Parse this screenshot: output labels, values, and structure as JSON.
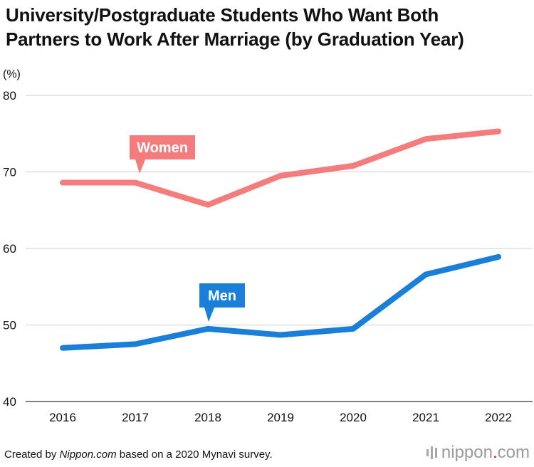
{
  "title": "University/Postgraduate Students Who Want Both\nPartners to Work After Marriage (by Graduation Year)",
  "unit_label": "(%)",
  "footer": {
    "prefix": "Created by ",
    "source_name": "Nippon.com",
    "suffix": " based on a 2020 Mynavi survey."
  },
  "logo": {
    "name": "nippon",
    "dot": ".",
    "tld": "com"
  },
  "chart_data": {
    "type": "line",
    "title": "University/Postgraduate Students Who Want Both Partners to Work After Marriage (by Graduation Year)",
    "xlabel": "",
    "ylabel": "(%)",
    "x": [
      "2016",
      "2017",
      "2018",
      "2019",
      "2020",
      "2021",
      "2022"
    ],
    "ylim": [
      40,
      80
    ],
    "yticks": [
      40,
      50,
      60,
      70,
      80
    ],
    "grid": true,
    "series": [
      {
        "name": "Women",
        "color": "#f47c7c",
        "values": [
          68.6,
          68.6,
          65.7,
          69.5,
          70.8,
          74.3,
          75.3
        ]
      },
      {
        "name": "Men",
        "color": "#1a7fd8",
        "values": [
          47.0,
          47.5,
          49.5,
          48.7,
          49.5,
          56.6,
          58.9
        ]
      }
    ]
  }
}
